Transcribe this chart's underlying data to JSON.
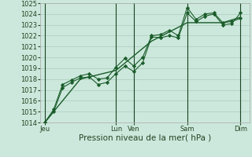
{
  "background_color": "#cce8dc",
  "grid_color": "#aaccbb",
  "line_color": "#1a5c2a",
  "marker_color": "#1a5c2a",
  "ylim": [
    1014,
    1025
  ],
  "yticks": [
    1014,
    1015,
    1016,
    1017,
    1018,
    1019,
    1020,
    1021,
    1022,
    1023,
    1024,
    1025
  ],
  "xlabel": "Pression niveau de la mer( hPa )",
  "xlabel_fontsize": 7.5,
  "tick_fontsize": 6,
  "xtick_labels": [
    "Jeu",
    "Lun",
    "Ven",
    "Sam",
    "Dim"
  ],
  "xtick_positions": [
    0,
    8,
    10,
    16,
    22
  ],
  "vlines_x": [
    0,
    8,
    10,
    16,
    22
  ],
  "xlim": [
    -0.5,
    23
  ],
  "series1_x": [
    0,
    1,
    2,
    3,
    4,
    5,
    6,
    7,
    8,
    9,
    10,
    11,
    12,
    13,
    14,
    15,
    16,
    17,
    18,
    19,
    20,
    21,
    22
  ],
  "series1_y": [
    1014.0,
    1015.0,
    1017.2,
    1017.7,
    1018.1,
    1018.2,
    1017.5,
    1017.7,
    1018.5,
    1019.2,
    1018.7,
    1019.5,
    1021.9,
    1021.8,
    1022.0,
    1021.8,
    1024.1,
    1023.3,
    1023.8,
    1024.0,
    1023.0,
    1023.1,
    1024.1
  ],
  "series2_x": [
    0,
    1,
    2,
    3,
    4,
    5,
    6,
    7,
    8,
    9,
    10,
    11,
    12,
    13,
    14,
    15,
    16,
    17,
    18,
    19,
    20,
    21,
    22
  ],
  "series2_y": [
    1014.0,
    1015.2,
    1017.5,
    1017.9,
    1018.3,
    1018.5,
    1018.0,
    1018.1,
    1019.1,
    1019.9,
    1019.2,
    1020.0,
    1022.0,
    1022.1,
    1022.5,
    1022.0,
    1024.6,
    1023.5,
    1024.0,
    1024.1,
    1023.2,
    1023.3,
    1023.6
  ],
  "series3_x": [
    0,
    4,
    8,
    12,
    16,
    20,
    22
  ],
  "series3_y": [
    1014.0,
    1018.0,
    1018.8,
    1021.5,
    1023.2,
    1023.2,
    1023.7
  ]
}
